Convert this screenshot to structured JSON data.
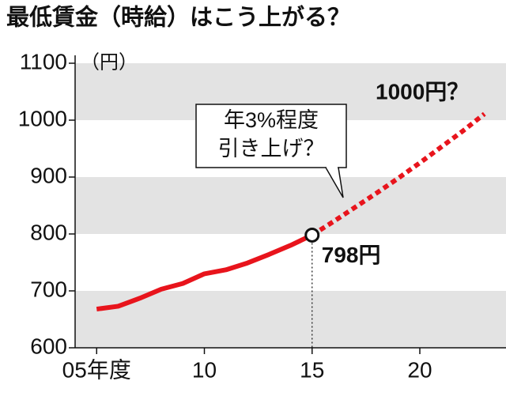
{
  "chart_data": {
    "type": "line",
    "title": "最低賃金（時給）はこう上がる？",
    "y_unit": "（円）",
    "x": [
      5,
      6,
      7,
      8,
      9,
      10,
      11,
      12,
      13,
      14,
      15,
      16,
      17,
      18,
      19,
      20,
      21,
      22,
      23
    ],
    "series": [
      {
        "color": "#e8141c",
        "dashed": false,
        "values": [
          668,
          673,
          687,
          703,
          713,
          730,
          737,
          749,
          764,
          780,
          798,
          null,
          null,
          null,
          null,
          null,
          null,
          null,
          null
        ]
      },
      {
        "color": "#e8141c",
        "dashed": true,
        "values": [
          null,
          null,
          null,
          null,
          null,
          null,
          null,
          null,
          null,
          null,
          798,
          822,
          847,
          872,
          898,
          925,
          953,
          981,
          1011
        ]
      }
    ],
    "xlim": [
      4,
      24
    ],
    "xticks": [
      {
        "value": 5,
        "label": "05年度"
      },
      10,
      15,
      20
    ],
    "ylim": [
      600,
      1100
    ],
    "yticks": [
      600,
      700,
      800,
      900,
      1000,
      1100
    ],
    "grid": "bands",
    "annotations": [
      "798円",
      "1000円？",
      "年3%程度",
      "引き上げ？"
    ]
  }
}
